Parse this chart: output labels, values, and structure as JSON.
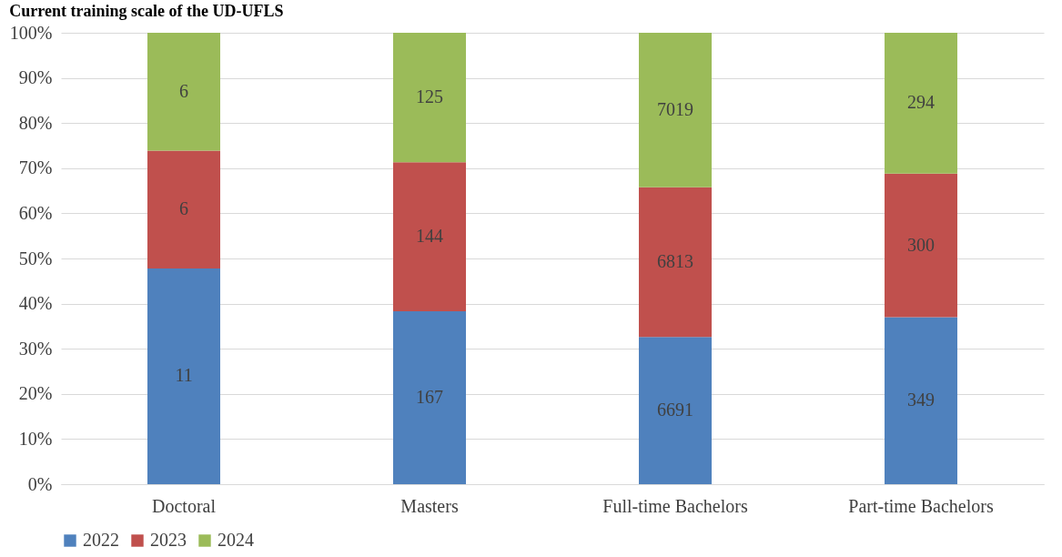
{
  "chart_data": {
    "type": "bar",
    "title": "Current training scale of the UD-UFLS",
    "stacked": true,
    "categories": [
      "Doctoral",
      "Masters",
      "Full-time Bachelors",
      "Part-time Bachelors"
    ],
    "series": [
      {
        "name": "2022",
        "color": "#4f81bd",
        "values": [
          47.8,
          38.3,
          32.6,
          37.0
        ]
      },
      {
        "name": "2023",
        "color": "#c0504d",
        "values": [
          26.1,
          33.0,
          33.2,
          31.8
        ]
      },
      {
        "name": "2024",
        "color": "#9bbb59",
        "values": [
          26.1,
          28.7,
          34.2,
          31.2
        ]
      }
    ],
    "annotations": [
      "11",
      "167",
      "6691",
      "349",
      "6",
      "144",
      "6813",
      "300",
      "6",
      "125",
      "7019",
      "294"
    ],
    "ylim": [
      0,
      100
    ],
    "yticks": [
      {
        "value": 0,
        "label": "0%"
      },
      {
        "value": 10,
        "label": "10%"
      },
      {
        "value": 20,
        "label": "20%"
      },
      {
        "value": 30,
        "label": "30%"
      },
      {
        "value": 40,
        "label": "40%"
      },
      {
        "value": 50,
        "label": "50%"
      },
      {
        "value": 60,
        "label": "60%"
      },
      {
        "value": 70,
        "label": "70%"
      },
      {
        "value": 80,
        "label": "80%"
      },
      {
        "value": 90,
        "label": "90%"
      },
      {
        "value": 100,
        "label": "100%"
      }
    ],
    "grid": "y",
    "legend": "bottom"
  }
}
